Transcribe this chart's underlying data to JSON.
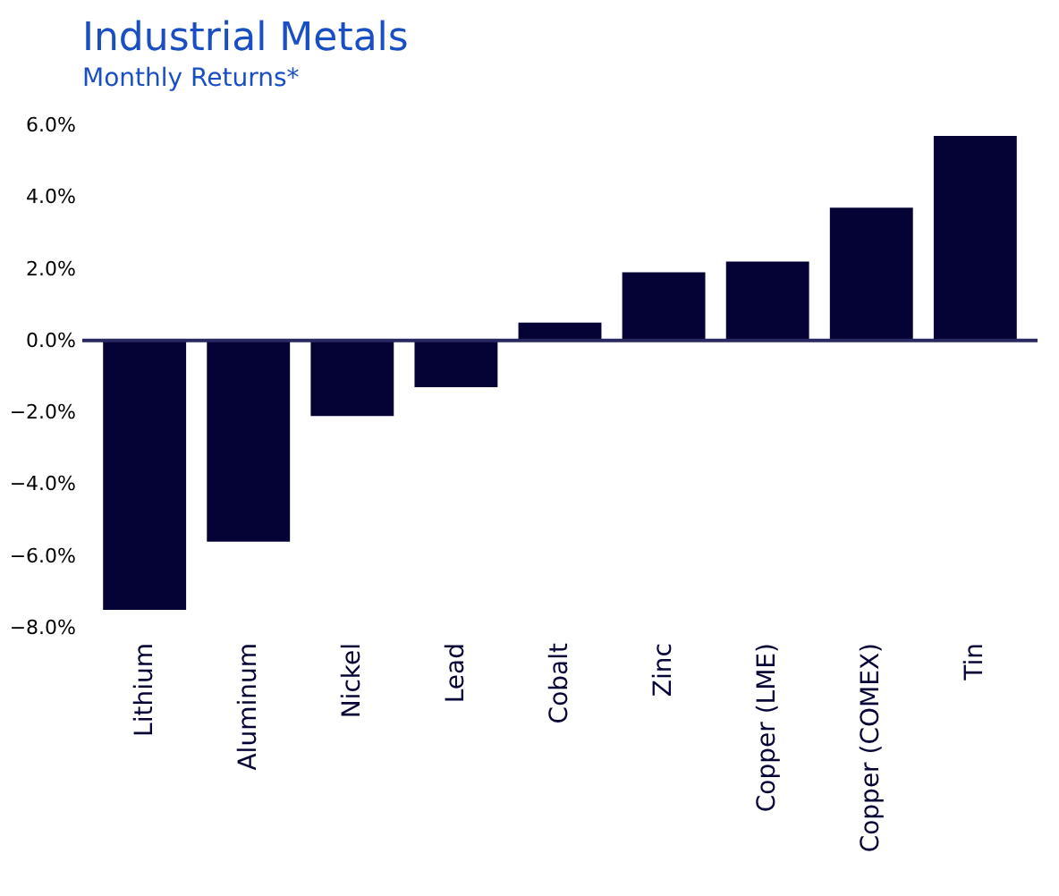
{
  "chart_data": {
    "type": "bar",
    "title": "Industrial Metals",
    "subtitle": "Monthly Returns*",
    "categories": [
      "Lithium",
      "Aluminum",
      "Nickel",
      "Lead",
      "Cobalt",
      "Zinc",
      "Copper (LME)",
      "Copper (COMEX)",
      "Tin"
    ],
    "values": [
      -7.5,
      -5.6,
      -2.1,
      -1.3,
      0.5,
      1.9,
      2.2,
      3.7,
      5.7
    ],
    "color": "#050336",
    "ylim": [
      -8,
      6
    ],
    "yticks": [
      {
        "value": -8,
        "label": "−8.0%"
      },
      {
        "value": -6,
        "label": "−6.0%"
      },
      {
        "value": -4,
        "label": "−4.0%"
      },
      {
        "value": -2,
        "label": "−2.0%"
      },
      {
        "value": 0,
        "label": "0.0%"
      },
      {
        "value": 2,
        "label": "2.0%"
      },
      {
        "value": 4,
        "label": "4.0%"
      },
      {
        "value": 6,
        "label": "6.0%"
      }
    ],
    "ref_lines": [
      {
        "axis": "y",
        "value": 0,
        "color": "#2a2860"
      }
    ],
    "grid": false
  }
}
